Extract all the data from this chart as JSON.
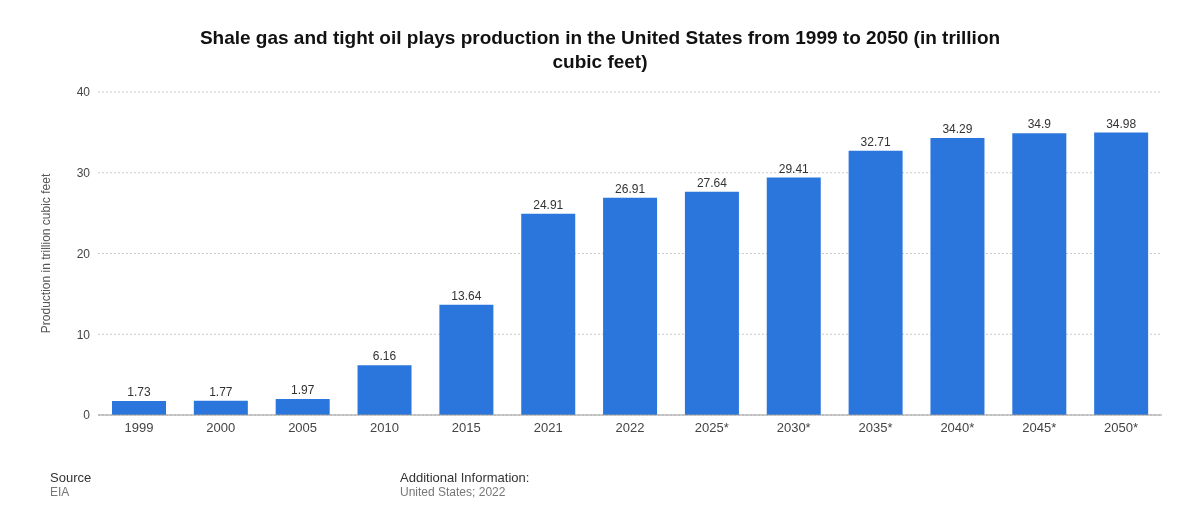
{
  "chart_data": {
    "type": "bar",
    "title": "Shale gas and tight oil plays production in the United States from 1999 to 2050 (in trillion cubic feet)",
    "ylabel": "Production in trillion cubic feet",
    "categories": [
      "1999",
      "2000",
      "2005",
      "2010",
      "2015",
      "2021",
      "2022",
      "2025*",
      "2030*",
      "2035*",
      "2040*",
      "2045*",
      "2050*"
    ],
    "values": [
      1.73,
      1.77,
      1.97,
      6.16,
      13.64,
      24.91,
      26.91,
      27.64,
      29.41,
      32.71,
      34.29,
      34.9,
      34.98
    ],
    "color": "#2a76dd",
    "ylim": [
      0,
      40
    ],
    "yticks": [
      0,
      10,
      20,
      30,
      40
    ],
    "grid": "y",
    "data_labels": true,
    "annotations": [
      "Source",
      "EIA",
      "Additional Information:",
      "United States; 2022"
    ]
  }
}
